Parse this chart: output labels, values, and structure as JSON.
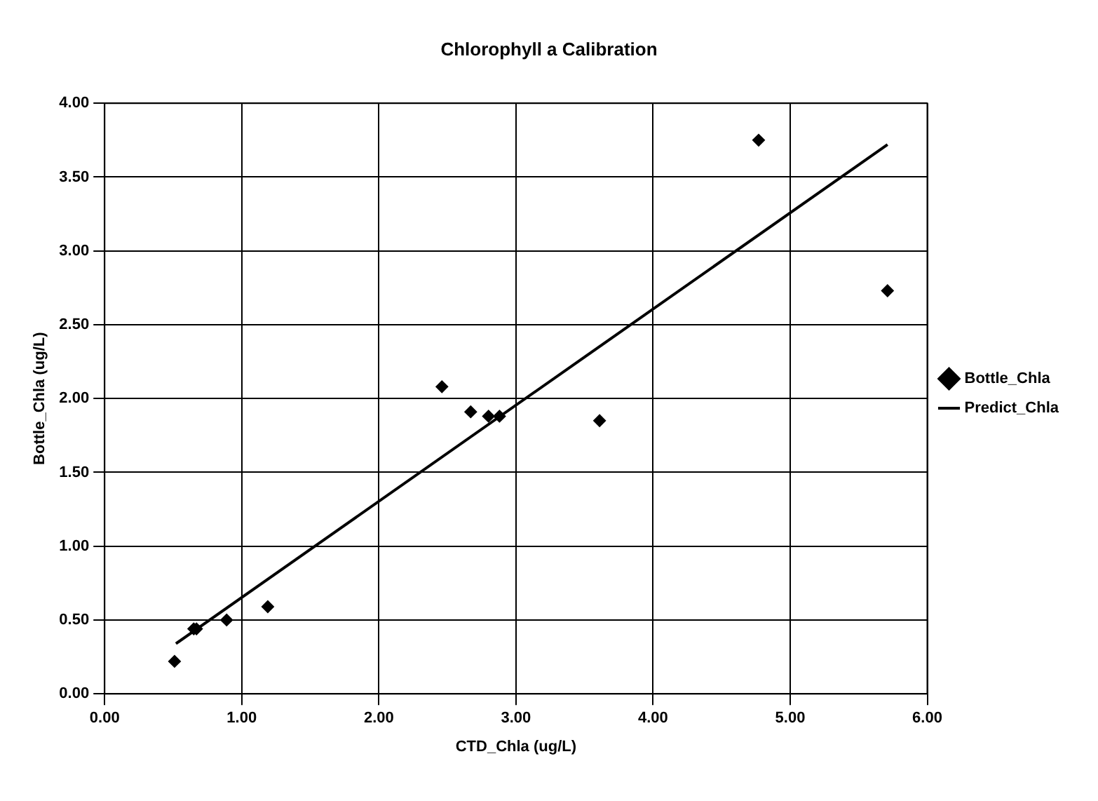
{
  "chart_data": {
    "type": "scatter",
    "title": "Chlorophyll a Calibration",
    "xlabel": "CTD_Chla (ug/L)",
    "ylabel": "Bottle_Chla (ug/L)",
    "xlim": [
      0,
      6
    ],
    "xticks": [
      {
        "value": 0,
        "label": "0.00"
      },
      {
        "value": 1,
        "label": "1.00"
      },
      {
        "value": 2,
        "label": "2.00"
      },
      {
        "value": 3,
        "label": "3.00"
      },
      {
        "value": 4,
        "label": "4.00"
      },
      {
        "value": 5,
        "label": "5.00"
      },
      {
        "value": 6,
        "label": "6.00"
      }
    ],
    "ylim": [
      0,
      4
    ],
    "yticks": [
      {
        "value": 0,
        "label": "0.00"
      },
      {
        "value": 0.5,
        "label": "0.50"
      },
      {
        "value": 1,
        "label": "1.00"
      },
      {
        "value": 1.5,
        "label": "1.50"
      },
      {
        "value": 2,
        "label": "2.00"
      },
      {
        "value": 2.5,
        "label": "2.50"
      },
      {
        "value": 3,
        "label": "3.00"
      },
      {
        "value": 3.5,
        "label": "3.50"
      },
      {
        "value": 4,
        "label": "4.00"
      }
    ],
    "grid": true,
    "legend": "right",
    "marker": "diamond",
    "series": [
      {
        "name": "Bottle_Chla",
        "type": "scatter",
        "color": "#000000",
        "x": [
          0.51,
          0.65,
          0.67,
          0.89,
          1.19,
          2.46,
          2.67,
          2.8,
          2.88,
          3.61,
          4.77,
          5.71
        ],
        "values": [
          0.22,
          0.44,
          0.44,
          0.5,
          0.59,
          2.08,
          1.91,
          1.88,
          1.88,
          1.85,
          3.75,
          2.73
        ]
      },
      {
        "name": "Predict_Chla",
        "type": "line",
        "color": "#000000",
        "line_style": "solid",
        "marker": "none",
        "x": [
          0.52,
          5.71
        ],
        "values": [
          0.34,
          3.72
        ]
      }
    ]
  }
}
